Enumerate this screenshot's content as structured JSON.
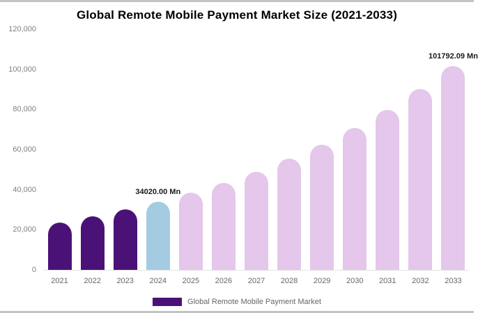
{
  "chart_data": {
    "type": "bar",
    "title": "Global Remote Mobile Payment Market Size (2021-2033)",
    "categories": [
      "2021",
      "2022",
      "2023",
      "2024",
      "2025",
      "2026",
      "2027",
      "2028",
      "2029",
      "2030",
      "2031",
      "2032",
      "2033"
    ],
    "values": [
      23600,
      26700,
      30100,
      34020,
      38430,
      43400,
      49030,
      55380,
      62550,
      70660,
      79810,
      90150,
      101792.09
    ],
    "ylim": [
      0,
      120000
    ],
    "yticks": [
      0,
      20000,
      40000,
      60000,
      80000,
      100000,
      120000
    ],
    "ytick_labels": [
      "0",
      "20,000",
      "40,000",
      "60,000",
      "80,000",
      "100,000",
      "120,000"
    ],
    "xlabel": "",
    "ylabel": "",
    "grid": false,
    "legend": {
      "label": "Global Remote Mobile Payment Market",
      "swatch_color": "#4a1277",
      "position": "bottom"
    },
    "annotations": [
      {
        "category": "2024",
        "text": "34020.00 Mn"
      },
      {
        "category": "2033",
        "text": "101792.09 Mn"
      }
    ],
    "bar_colors": {
      "historical": "#4a1277",
      "base_year": "#a3cce3",
      "forecast": "#e4c7ea"
    },
    "color_map": [
      "historical",
      "historical",
      "historical",
      "base_year",
      "forecast",
      "forecast",
      "forecast",
      "forecast",
      "forecast",
      "forecast",
      "forecast",
      "forecast",
      "forecast"
    ]
  },
  "page": {
    "background": "#ffffff",
    "frame_color": "#c3c3c3"
  }
}
